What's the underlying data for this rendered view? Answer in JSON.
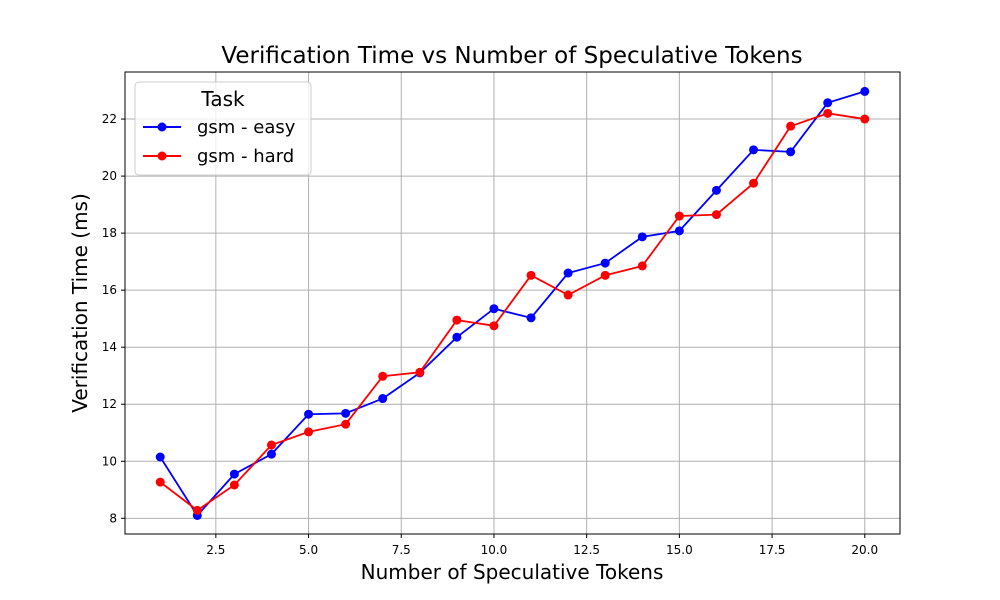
{
  "chart_data": {
    "type": "line",
    "title": "Verification Time vs Number of Speculative Tokens",
    "xlabel": "Number of Speculative Tokens",
    "ylabel": "Verification Time (ms)",
    "xlim": [
      0.05,
      20.95
    ],
    "ylim": [
      7.45,
      23.65
    ],
    "xticks": [
      2.5,
      5.0,
      7.5,
      10.0,
      12.5,
      15.0,
      17.5,
      20.0
    ],
    "xtick_labels": [
      "2.5",
      "5.0",
      "7.5",
      "10.0",
      "12.5",
      "15.0",
      "17.5",
      "20.0"
    ],
    "yticks": [
      8,
      10,
      12,
      14,
      16,
      18,
      20,
      22
    ],
    "ytick_labels": [
      "8",
      "10",
      "12",
      "14",
      "16",
      "18",
      "20",
      "22"
    ],
    "grid": true,
    "legend": {
      "title": "Task",
      "placement": "top-left"
    },
    "x": [
      1,
      2,
      3,
      4,
      5,
      6,
      7,
      8,
      9,
      10,
      11,
      12,
      13,
      14,
      15,
      16,
      17,
      18,
      19,
      20
    ],
    "series": [
      {
        "name": "gsm - easy",
        "color": "#0000ff",
        "values": [
          10.15,
          8.1,
          9.55,
          10.25,
          11.65,
          11.68,
          12.2,
          13.1,
          14.35,
          15.35,
          15.03,
          16.6,
          16.95,
          17.87,
          18.08,
          19.5,
          20.92,
          20.85,
          22.57,
          22.97
        ]
      },
      {
        "name": "gsm - hard",
        "color": "#ff0000",
        "values": [
          9.27,
          8.28,
          9.17,
          10.57,
          11.03,
          11.3,
          12.98,
          13.12,
          14.95,
          14.75,
          16.52,
          15.83,
          16.52,
          16.85,
          18.6,
          18.65,
          19.75,
          21.75,
          22.2,
          22.0
        ]
      }
    ]
  }
}
